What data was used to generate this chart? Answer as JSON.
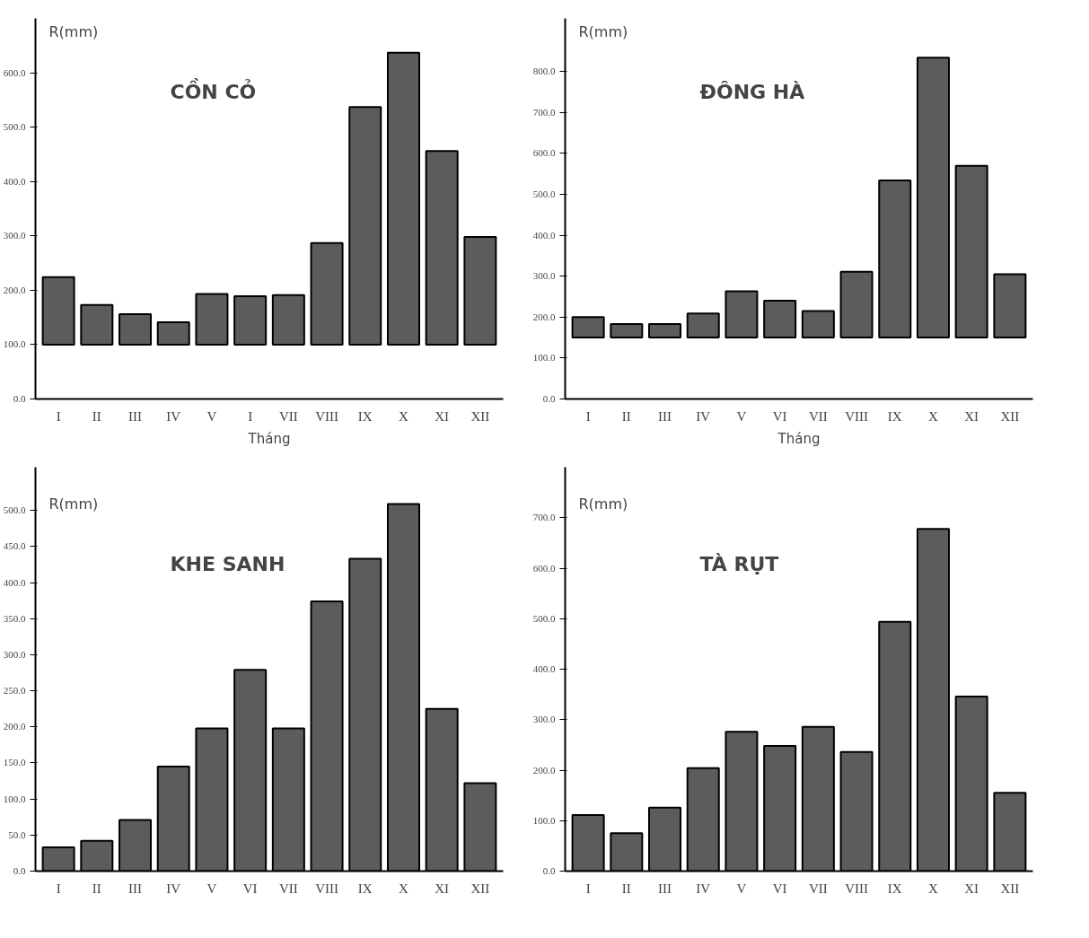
{
  "chart_data": [
    {
      "type": "bar",
      "title": "CỒN CỎ",
      "ylabel": "R(mm)",
      "xlabel": "Tháng",
      "color": "#5c5c5c",
      "categories": [
        "I",
        "II",
        "III",
        "IV",
        "V",
        "I",
        "VII",
        "VIII",
        "IX",
        "X",
        "XI",
        "XII"
      ],
      "base": [
        100,
        100,
        100,
        100,
        100,
        100,
        100,
        100,
        100,
        100,
        100,
        100
      ],
      "values": [
        124,
        73,
        56,
        41,
        93,
        89,
        91,
        187,
        437,
        537,
        356,
        198
      ],
      "ylim": [
        0,
        700
      ],
      "yticks": [
        {
          "value": 0,
          "label": "0.0"
        },
        {
          "value": 100,
          "label": "100.0"
        },
        {
          "value": 200,
          "label": "200.0"
        },
        {
          "value": 300,
          "label": "300.0"
        },
        {
          "value": 400,
          "label": "400.0"
        },
        {
          "value": 500,
          "label": "500.0"
        },
        {
          "value": 600,
          "label": "600.0"
        }
      ]
    },
    {
      "type": "bar",
      "title": "ĐÔNG HÀ",
      "ylabel": "R(mm)",
      "xlabel": "Tháng",
      "color": "#5c5c5c",
      "categories": [
        "I",
        "II",
        "III",
        "IV",
        "V",
        "VI",
        "VII",
        "VIII",
        "IX",
        "X",
        "XI",
        "XII"
      ],
      "base": [
        150,
        150,
        150,
        150,
        150,
        150,
        150,
        150,
        150,
        150,
        150,
        150
      ],
      "values": [
        50,
        33,
        33,
        59,
        113,
        90,
        65,
        161,
        384,
        684,
        420,
        155
      ],
      "ylim": [
        0,
        930
      ],
      "yticks": [
        {
          "value": 0,
          "label": "0.0"
        },
        {
          "value": 100,
          "label": "100.0"
        },
        {
          "value": 200,
          "label": "200.0"
        },
        {
          "value": 300,
          "label": "300.0"
        },
        {
          "value": 400,
          "label": "400.0"
        },
        {
          "value": 500,
          "label": "500.0"
        },
        {
          "value": 600,
          "label": "600.0"
        },
        {
          "value": 700,
          "label": "700.0"
        },
        {
          "value": 800,
          "label": "800.0"
        }
      ]
    },
    {
      "type": "bar",
      "title": "KHE SANH",
      "ylabel": "R(mm)",
      "color": "#5c5c5c",
      "categories": [
        "I",
        "II",
        "III",
        "IV",
        "V",
        "VI",
        "VII",
        "VIII",
        "IX",
        "X",
        "XI",
        "XII"
      ],
      "values": [
        33,
        42,
        71,
        145,
        198,
        279,
        198,
        374,
        433,
        509,
        225,
        122
      ],
      "ylim": [
        0,
        560
      ],
      "yticks": [
        {
          "value": 0,
          "label": "0.0"
        },
        {
          "value": 50,
          "label": "50.0"
        },
        {
          "value": 100,
          "label": "100.0"
        },
        {
          "value": 150,
          "label": "150.0"
        },
        {
          "value": 200,
          "label": "200.0"
        },
        {
          "value": 250,
          "label": "250.0"
        },
        {
          "value": 300,
          "label": "300.0"
        },
        {
          "value": 350,
          "label": "350.0"
        },
        {
          "value": 400,
          "label": "400.0"
        },
        {
          "value": 450,
          "label": "450.0"
        },
        {
          "value": 500,
          "label": "500.0"
        }
      ]
    },
    {
      "type": "bar",
      "title": "TÀ RỤT",
      "ylabel": "R(mm)",
      "color": "#5c5c5c",
      "categories": [
        "I",
        "II",
        "III",
        "IV",
        "V",
        "VI",
        "VII",
        "VIII",
        "IX",
        "X",
        "XI",
        "XII"
      ],
      "values": [
        111,
        75,
        126,
        204,
        276,
        248,
        286,
        236,
        494,
        678,
        346,
        155
      ],
      "ylim": [
        0,
        800
      ],
      "yticks": [
        {
          "value": 0,
          "label": "0.0"
        },
        {
          "value": 100,
          "label": "100.0"
        },
        {
          "value": 200,
          "label": "200.0"
        },
        {
          "value": 300,
          "label": "300.0"
        },
        {
          "value": 400,
          "label": "400.0"
        },
        {
          "value": 500,
          "label": "500.0"
        },
        {
          "value": 600,
          "label": "600.0"
        },
        {
          "value": 700,
          "label": "700.0"
        }
      ]
    }
  ]
}
